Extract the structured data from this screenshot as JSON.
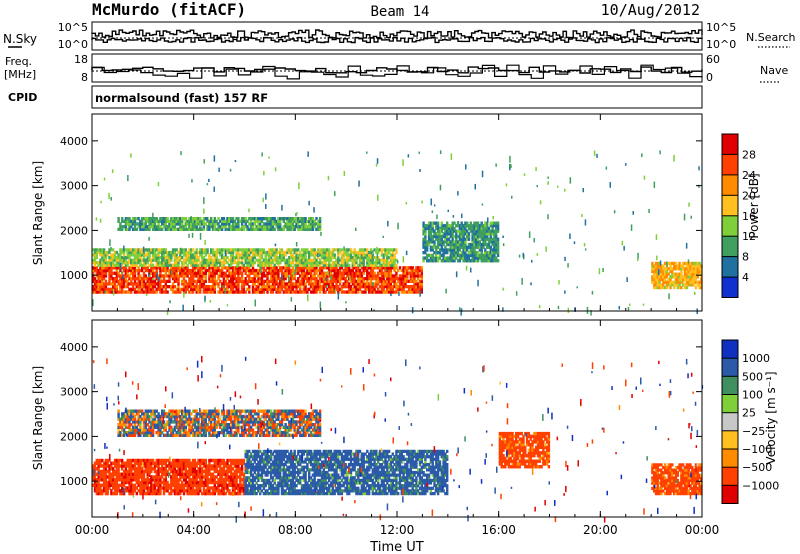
{
  "header": {
    "station": "McMurdo (fitACF)",
    "beam": "Beam 14",
    "date": "10/Aug/2012"
  },
  "status_panel": {
    "left_top_label": "N.Sky",
    "left_freq_label": "Freq.",
    "left_freq_unit": "[MHz]",
    "left_cpid_label": "CPID",
    "left_ticks_top": [
      "10^5",
      "10^0"
    ],
    "left_ticks_freq": [
      "18",
      "8"
    ],
    "right_ticks_top": [
      "10^5",
      "10^0"
    ],
    "right_ticks_nave": [
      "60",
      "0"
    ],
    "right_top_label": "N.Search",
    "right_nave_label": "Nave",
    "cpid_text": "normalsound (fast) 157 RF"
  },
  "chart_data": [
    {
      "type": "heatmap",
      "name": "power",
      "ylabel": "Slant Range [km]",
      "yticks": [
        1000,
        2000,
        3000,
        4000
      ],
      "ylim": [
        200,
        4600
      ],
      "xlabel": "Time UT",
      "xticks": [
        "00:00",
        "04:00",
        "08:00",
        "12:00",
        "16:00",
        "20:00",
        "00:00"
      ],
      "xlim_hours": [
        0,
        24
      ],
      "colorbar_label": "Power [dB]",
      "colorbar_ticks": [
        "28",
        "24",
        "20",
        "16",
        "12",
        "8",
        "4"
      ],
      "colorbar_colors": [
        "#e00000",
        "#ff4000",
        "#ff8c00",
        "#ffc020",
        "#7fcf3a",
        "#3f9f5f",
        "#2070a0",
        "#1030d0"
      ],
      "regions": [
        {
          "t": [
            0,
            13
          ],
          "range": [
            600,
            1200
          ],
          "value": 28
        },
        {
          "t": [
            0,
            12
          ],
          "range": [
            1200,
            1600
          ],
          "value": 14
        },
        {
          "t": [
            1,
            9
          ],
          "range": [
            2000,
            2300
          ],
          "value": 10
        },
        {
          "t": [
            13,
            16
          ],
          "range": [
            1300,
            2200
          ],
          "value": 8
        },
        {
          "t": [
            22,
            24
          ],
          "range": [
            700,
            1300
          ],
          "value": 20
        }
      ]
    },
    {
      "type": "heatmap",
      "name": "velocity",
      "ylabel": "Slant Range [km]",
      "yticks": [
        1000,
        2000,
        3000,
        4000
      ],
      "ylim": [
        200,
        4600
      ],
      "xlabel": "Time UT",
      "xticks": [
        "00:00",
        "04:00",
        "08:00",
        "12:00",
        "16:00",
        "20:00",
        "00:00"
      ],
      "xlim_hours": [
        0,
        24
      ],
      "colorbar_label": "Velocity [m s⁻¹]",
      "colorbar_ticks": [
        "1000",
        "500",
        "100",
        "25",
        "−25",
        "−100",
        "−500",
        "−1000"
      ],
      "colorbar_colors": [
        "#1030c0",
        "#2a5aa8",
        "#3f8f5f",
        "#7fcf3a",
        "#c8c8c8",
        "#ffc020",
        "#ff8c00",
        "#ff4000",
        "#e00000"
      ],
      "regions": [
        {
          "t": [
            0,
            6
          ],
          "range": [
            700,
            1500
          ],
          "value": -300
        },
        {
          "t": [
            6,
            14
          ],
          "range": [
            700,
            1700
          ],
          "value": 200
        },
        {
          "t": [
            1,
            9
          ],
          "range": [
            2000,
            2600
          ],
          "value": 25
        },
        {
          "t": [
            16,
            18
          ],
          "range": [
            1300,
            2100
          ],
          "value": -200
        },
        {
          "t": [
            22,
            24
          ],
          "range": [
            700,
            1400
          ],
          "value": -200
        }
      ]
    }
  ],
  "bottom_axis": {
    "xticks": [
      "00:00",
      "04:00",
      "08:00",
      "12:00",
      "16:00",
      "20:00",
      "00:00"
    ],
    "xlabel": "Time UT"
  }
}
